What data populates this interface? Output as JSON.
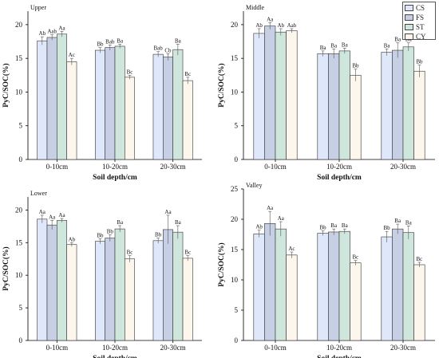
{
  "legend": {
    "position": "top-right",
    "items": [
      {
        "label": "CS",
        "color": "#dfe8fb"
      },
      {
        "label": "FS",
        "color": "#c7cfe4"
      },
      {
        "label": "ST",
        "color": "#cfe6dd"
      },
      {
        "label": "CY",
        "color": "#fdf6ec"
      }
    ]
  },
  "chart_data": [
    {
      "type": "bar",
      "panel_label": "Upper",
      "title": "",
      "xlabel": "Soil depth/cm",
      "ylabel": "PyC/SOC(%)",
      "ylim": [
        0,
        22
      ],
      "yticks": [
        0,
        5,
        10,
        15,
        20
      ],
      "grid": false,
      "categories": [
        "0-10cm",
        "10-20cm",
        "20-30cm"
      ],
      "series": [
        {
          "name": "CS",
          "values": [
            17.6,
            16.2,
            15.6
          ],
          "errors": [
            0.6,
            0.4,
            0.4
          ],
          "labels": [
            "Ab",
            "Bb",
            "Bab"
          ]
        },
        {
          "name": "FS",
          "values": [
            18.1,
            16.6,
            15.2
          ],
          "errors": [
            0.4,
            0.4,
            0.5
          ],
          "labels": [
            "Aab",
            "Bab",
            "Cb"
          ]
        },
        {
          "name": "ST",
          "values": [
            18.6,
            16.8,
            16.3
          ],
          "errors": [
            0.4,
            0.3,
            0.8
          ],
          "labels": [
            "Aa",
            "Ba",
            "Ba"
          ]
        },
        {
          "name": "CY",
          "values": [
            14.5,
            12.2,
            11.7
          ],
          "errors": [
            0.5,
            0.3,
            0.5
          ],
          "labels": [
            "Ac",
            "Bc",
            "Bc"
          ]
        }
      ]
    },
    {
      "type": "bar",
      "panel_label": "Middle",
      "title": "",
      "xlabel": "Soil depth/cm",
      "ylabel": "PyC/SOC(%)",
      "ylim": [
        0,
        22
      ],
      "yticks": [
        0,
        5,
        10,
        15,
        20
      ],
      "grid": false,
      "categories": [
        "0-10cm",
        "10-20cm",
        "20-30cm"
      ],
      "series": [
        {
          "name": "CS",
          "values": [
            18.7,
            15.7,
            15.9
          ],
          "errors": [
            0.7,
            0.4,
            0.5
          ],
          "labels": [
            "Ab",
            "Ba",
            "Ba"
          ]
        },
        {
          "name": "FS",
          "values": [
            19.8,
            15.7,
            16.2
          ],
          "errors": [
            0.5,
            0.7,
            1.1
          ],
          "labels": [
            "Aa",
            "Ba",
            "Ba"
          ]
        },
        {
          "name": "ST",
          "values": [
            18.9,
            16.1,
            16.7
          ],
          "errors": [
            0.5,
            0.4,
            0.6
          ],
          "labels": [
            "Ab",
            "Ba",
            "Ba"
          ]
        },
        {
          "name": "CY",
          "values": [
            19.1,
            12.5,
            13.1
          ],
          "errors": [
            0.3,
            0.9,
            0.9
          ],
          "labels": [
            "Aab",
            "Bb",
            "Bb"
          ]
        }
      ]
    },
    {
      "type": "bar",
      "panel_label": "Lower",
      "title": "",
      "xlabel": "Soil depth/cm",
      "ylabel": "PyC/SOC(%)",
      "ylim": [
        0,
        22
      ],
      "yticks": [
        0,
        5,
        10,
        15,
        20
      ],
      "grid": false,
      "categories": [
        "0-10cm",
        "10-20cm",
        "20-30cm"
      ],
      "series": [
        {
          "name": "CS",
          "values": [
            18.6,
            15.2,
            15.3
          ],
          "errors": [
            0.6,
            0.4,
            0.4
          ],
          "labels": [
            "Aa",
            "Bb",
            "Bb"
          ]
        },
        {
          "name": "FS",
          "values": [
            17.7,
            15.7,
            17.0
          ],
          "errors": [
            0.7,
            0.5,
            2.2
          ],
          "labels": [
            "Aa",
            "Bb",
            "Aa"
          ]
        },
        {
          "name": "ST",
          "values": [
            18.4,
            17.1,
            16.6
          ],
          "errors": [
            0.3,
            0.5,
            1.0
          ],
          "labels": [
            "Aa",
            "Ba",
            "Ba"
          ]
        },
        {
          "name": "CY",
          "values": [
            14.7,
            12.5,
            12.6
          ],
          "errors": [
            0.3,
            0.5,
            0.4
          ],
          "labels": [
            "Ab",
            "Bc",
            "Bc"
          ]
        }
      ]
    },
    {
      "type": "bar",
      "panel_label": "Valley",
      "title": "",
      "xlabel": "Soil depth/cm",
      "ylabel": "PyC/SOC(%)",
      "ylim": [
        0,
        25
      ],
      "yticks": [
        0,
        5,
        10,
        15,
        20,
        25
      ],
      "grid": false,
      "categories": [
        "0-10cm",
        "10-20cm",
        "20-30cm"
      ],
      "series": [
        {
          "name": "CS",
          "values": [
            17.6,
            17.7,
            17.1
          ],
          "errors": [
            0.6,
            0.4,
            0.9
          ],
          "labels": [
            "Ab",
            "Bb",
            "Bb"
          ]
        },
        {
          "name": "FS",
          "values": [
            19.3,
            17.9,
            18.4
          ],
          "errors": [
            2.0,
            0.5,
            0.8
          ],
          "labels": [
            "Aa",
            "Ba",
            "Ba"
          ]
        },
        {
          "name": "ST",
          "values": [
            18.4,
            18.0,
            17.8
          ],
          "errors": [
            1.2,
            0.4,
            1.1
          ],
          "labels": [
            "Aa",
            "Ba",
            "Ba"
          ]
        },
        {
          "name": "CY",
          "values": [
            14.1,
            12.8,
            12.5
          ],
          "errors": [
            0.5,
            0.4,
            0.4
          ],
          "labels": [
            "Ac",
            "Bc",
            "Bc"
          ]
        }
      ]
    }
  ]
}
